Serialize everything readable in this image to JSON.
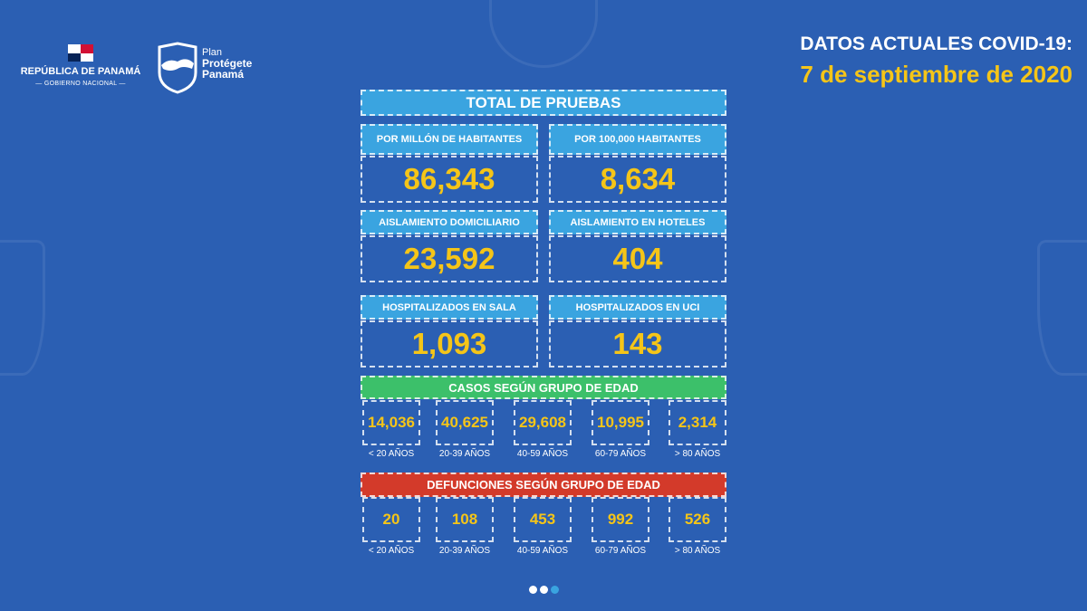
{
  "logo": {
    "republic": "REPÚBLICA DE PANAMÁ",
    "government": "— GOBIERNO NACIONAL —",
    "plan": "Plan",
    "plan_name_1": "Protégete",
    "plan_name_2": "Panamá"
  },
  "header": {
    "title": "DATOS ACTUALES COVID-19:",
    "date": "7 de septiembre de 2020"
  },
  "total_title": "TOTAL DE PRUEBAS",
  "stats": [
    {
      "label": "POR MILLÓN DE HABITANTES",
      "value": "86,343"
    },
    {
      "label": "POR 100,000 HABITANTES",
      "value": "8,634"
    },
    {
      "label": "AISLAMIENTO DOMICILIARIO",
      "value": "23,592"
    },
    {
      "label": "AISLAMIENTO EN HOTELES",
      "value": "404"
    },
    {
      "label": "HOSPITALIZADOS EN SALA",
      "value": "1,093"
    },
    {
      "label": "HOSPITALIZADOS EN UCI",
      "value": "143"
    }
  ],
  "cases": {
    "title": "CASOS SEGÚN GRUPO DE EDAD",
    "values": [
      "14,036",
      "40,625",
      "29,608",
      "10,995",
      "2,314"
    ]
  },
  "deaths": {
    "title": "DEFUNCIONES SEGÚN GRUPO DE EDAD",
    "values": [
      "20",
      "108",
      "453",
      "992",
      "526"
    ]
  },
  "age_groups": [
    "< 20 AÑOS",
    "20-39 AÑOS",
    "40-59 AÑOS",
    "60-79 AÑOS",
    "> 80 AÑOS"
  ],
  "colors": {
    "background": "#2b5fb3",
    "accent_yellow": "#f5c518",
    "label_blue": "#3aa4e0",
    "cases_green": "#3cc06a",
    "deaths_red": "#d33a2a"
  },
  "carousel": {
    "pages": 3,
    "active": 3
  }
}
